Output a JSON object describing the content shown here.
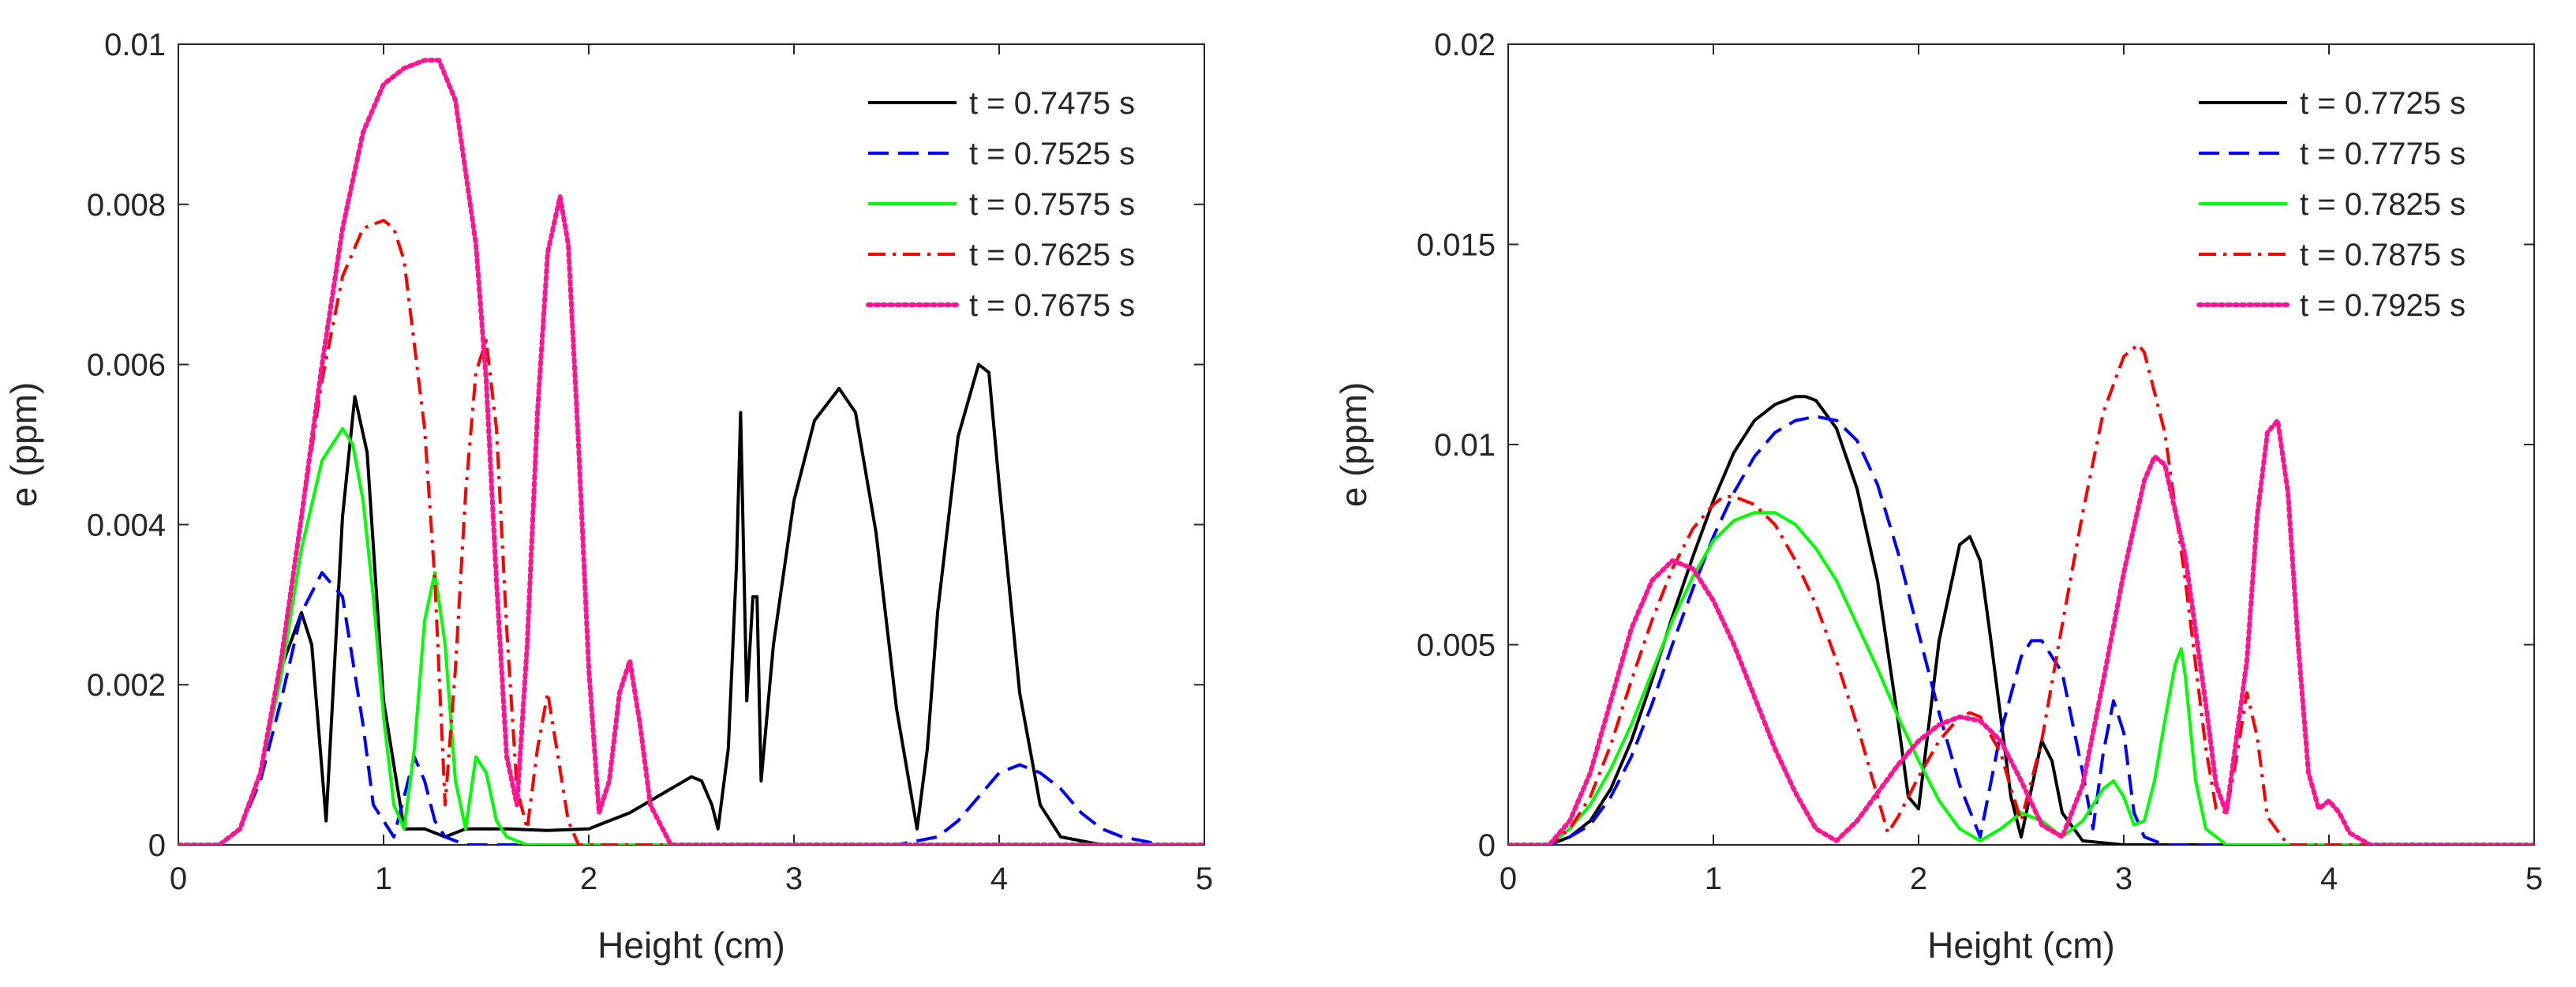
{
  "chart_data": [
    {
      "type": "line",
      "panel": "left",
      "title": "",
      "xlabel": "Height (cm)",
      "ylabel": "e (ppm)",
      "xlim": [
        0,
        5
      ],
      "ylim": [
        0,
        0.01
      ],
      "xticks": [
        0,
        1,
        2,
        3,
        4,
        5
      ],
      "xtick_labels": [
        "0",
        "1",
        "2",
        "3",
        "4",
        "5"
      ],
      "yticks": [
        0,
        0.002,
        0.004,
        0.006,
        0.008,
        0.01
      ],
      "ytick_labels": [
        "0",
        "0.002",
        "0.004",
        "0.006",
        "0.008",
        "0.01"
      ],
      "grid": false,
      "legend_position": "top-right",
      "series": [
        {
          "name": "t = 0.7475 s",
          "color": "#000000",
          "dash": "solid",
          "x": [
            0,
            0.2,
            0.3,
            0.4,
            0.5,
            0.6,
            0.65,
            0.72,
            0.8,
            0.86,
            0.92,
            1.0,
            1.1,
            1.2,
            1.3,
            1.4,
            1.6,
            1.8,
            2.0,
            2.2,
            2.4,
            2.5,
            2.55,
            2.6,
            2.63,
            2.68,
            2.72,
            2.74,
            2.77,
            2.8,
            2.82,
            2.84,
            2.9,
            3.0,
            3.1,
            3.22,
            3.3,
            3.4,
            3.5,
            3.6,
            3.65,
            3.7,
            3.8,
            3.9,
            3.95,
            4.0,
            4.1,
            4.2,
            4.3,
            4.5,
            4.7,
            5.0
          ],
          "y": [
            0,
            0,
            0.0002,
            0.0009,
            0.0022,
            0.0029,
            0.0025,
            0.0003,
            0.0041,
            0.0056,
            0.0049,
            0.0018,
            0.0002,
            0.0002,
            0.0001,
            0.0002,
            0.0002,
            0.00018,
            0.0002,
            0.0004,
            0.0007,
            0.00085,
            0.0008,
            0.0005,
            0.0002,
            0.0012,
            0.0035,
            0.0054,
            0.0018,
            0.0031,
            0.0031,
            0.0008,
            0.0025,
            0.0043,
            0.0053,
            0.0057,
            0.0054,
            0.0039,
            0.0017,
            0.0002,
            0.0012,
            0.0029,
            0.0051,
            0.006,
            0.0059,
            0.0045,
            0.0019,
            0.0005,
            0.0001,
            0,
            0,
            0
          ]
        },
        {
          "name": "t = 0.7525 s",
          "color": "#0000FF",
          "dash": "dashed",
          "x": [
            0,
            0.2,
            0.3,
            0.4,
            0.5,
            0.6,
            0.7,
            0.8,
            0.9,
            0.95,
            1.0,
            1.05,
            1.1,
            1.15,
            1.2,
            1.25,
            1.3,
            1.4,
            1.6,
            2.0,
            3.0,
            3.5,
            3.7,
            3.8,
            3.9,
            4.0,
            4.1,
            4.2,
            4.3,
            4.4,
            4.5,
            4.6,
            4.8,
            5.0
          ],
          "y": [
            0,
            0,
            0.0002,
            0.0008,
            0.0018,
            0.0029,
            0.0034,
            0.0031,
            0.0015,
            0.0005,
            0.0003,
            0.0001,
            0.0006,
            0.0011,
            0.0008,
            0.0003,
            0.0001,
            0,
            0,
            0,
            0,
            0,
            0.0001,
            0.0003,
            0.0006,
            0.0009,
            0.001,
            0.0009,
            0.0007,
            0.0004,
            0.0002,
            0.0001,
            0,
            0
          ]
        },
        {
          "name": "t = 0.7575 s",
          "color": "#00FF00",
          "dash": "solid",
          "x": [
            0,
            0.2,
            0.3,
            0.4,
            0.5,
            0.6,
            0.7,
            0.8,
            0.85,
            0.9,
            0.95,
            1.0,
            1.05,
            1.1,
            1.15,
            1.2,
            1.25,
            1.3,
            1.35,
            1.4,
            1.45,
            1.5,
            1.55,
            1.6,
            1.7,
            2.0,
            5.0
          ],
          "y": [
            0,
            0,
            0.0002,
            0.0009,
            0.0021,
            0.0037,
            0.0048,
            0.0052,
            0.005,
            0.0043,
            0.0031,
            0.0016,
            0.0005,
            0.0002,
            0.0012,
            0.0028,
            0.0034,
            0.0025,
            0.0008,
            0.0002,
            0.0011,
            0.0009,
            0.0003,
            0.0001,
            0,
            0,
            0
          ]
        },
        {
          "name": "t = 0.7625 s",
          "color": "#FF0000",
          "dash": "dashdot",
          "x": [
            0,
            0.2,
            0.3,
            0.4,
            0.5,
            0.6,
            0.7,
            0.8,
            0.9,
            1.0,
            1.05,
            1.1,
            1.2,
            1.25,
            1.3,
            1.35,
            1.4,
            1.45,
            1.5,
            1.55,
            1.6,
            1.65,
            1.7,
            1.75,
            1.8,
            1.85,
            1.9,
            1.95,
            2.0,
            3.0,
            5.0
          ],
          "y": [
            0,
            0,
            0.0002,
            0.0009,
            0.0023,
            0.0041,
            0.0058,
            0.0071,
            0.0077,
            0.0078,
            0.0077,
            0.0073,
            0.0052,
            0.0033,
            0.0005,
            0.0022,
            0.0044,
            0.0059,
            0.0063,
            0.0052,
            0.0027,
            0.0007,
            0.0002,
            0.0012,
            0.0019,
            0.0011,
            0.0003,
            0,
            0,
            0,
            0
          ]
        },
        {
          "name": "t = 0.7675 s",
          "color": "#FF1493",
          "dash": "dotted",
          "x": [
            0,
            0.2,
            0.3,
            0.4,
            0.5,
            0.6,
            0.7,
            0.8,
            0.9,
            1.0,
            1.1,
            1.2,
            1.27,
            1.35,
            1.45,
            1.5,
            1.55,
            1.6,
            1.65,
            1.7,
            1.75,
            1.8,
            1.86,
            1.9,
            1.95,
            2.0,
            2.05,
            2.1,
            2.15,
            2.2,
            2.25,
            2.3,
            2.4,
            3.0,
            5.0
          ],
          "y": [
            0,
            0,
            0.0002,
            0.0009,
            0.0023,
            0.0041,
            0.006,
            0.0077,
            0.0089,
            0.0095,
            0.0097,
            0.0098,
            0.0098,
            0.0093,
            0.0075,
            0.0058,
            0.0033,
            0.0011,
            0.0005,
            0.0025,
            0.0054,
            0.0074,
            0.0081,
            0.0075,
            0.005,
            0.0022,
            0.0004,
            0.0008,
            0.0019,
            0.0023,
            0.0015,
            0.0005,
            0,
            0,
            0
          ]
        }
      ]
    },
    {
      "type": "line",
      "panel": "right",
      "title": "",
      "xlabel": "Height (cm)",
      "ylabel": "e (ppm)",
      "xlim": [
        0,
        5
      ],
      "ylim": [
        0,
        0.02
      ],
      "xticks": [
        0,
        1,
        2,
        3,
        4,
        5
      ],
      "xtick_labels": [
        "0",
        "1",
        "2",
        "3",
        "4",
        "5"
      ],
      "yticks": [
        0,
        0.005,
        0.01,
        0.015,
        0.02
      ],
      "ytick_labels": [
        "0",
        "0.005",
        "0.01",
        "0.015",
        "0.02"
      ],
      "grid": false,
      "legend_position": "top-right",
      "series": [
        {
          "name": "t = 0.7725 s",
          "color": "#000000",
          "dash": "solid",
          "x": [
            0,
            0.2,
            0.3,
            0.4,
            0.5,
            0.6,
            0.7,
            0.8,
            0.9,
            1.0,
            1.1,
            1.2,
            1.3,
            1.4,
            1.45,
            1.5,
            1.6,
            1.7,
            1.8,
            1.9,
            1.95,
            2.0,
            2.1,
            2.2,
            2.25,
            2.3,
            2.35,
            2.4,
            2.45,
            2.5,
            2.55,
            2.6,
            2.65,
            2.7,
            2.8,
            3.0,
            5.0
          ],
          "y": [
            0,
            0,
            0.0002,
            0.0006,
            0.0014,
            0.0026,
            0.0041,
            0.0057,
            0.0072,
            0.0086,
            0.0098,
            0.0106,
            0.011,
            0.0112,
            0.0112,
            0.0111,
            0.0104,
            0.0089,
            0.0066,
            0.0031,
            0.0012,
            0.0009,
            0.0051,
            0.0075,
            0.0077,
            0.0071,
            0.0052,
            0.0032,
            0.0012,
            0.0002,
            0.0014,
            0.0026,
            0.0021,
            0.0008,
            0.0001,
            0,
            0
          ]
        },
        {
          "name": "t = 0.7775 s",
          "color": "#0000FF",
          "dash": "dashed",
          "x": [
            0,
            0.2,
            0.3,
            0.4,
            0.5,
            0.6,
            0.7,
            0.8,
            0.9,
            1.0,
            1.1,
            1.2,
            1.3,
            1.4,
            1.5,
            1.6,
            1.7,
            1.8,
            1.9,
            2.0,
            2.1,
            2.2,
            2.3,
            2.4,
            2.5,
            2.55,
            2.6,
            2.7,
            2.8,
            2.85,
            2.9,
            2.95,
            3.0,
            3.05,
            3.1,
            3.2,
            3.5,
            5.0
          ],
          "y": [
            0,
            0,
            0.0002,
            0.0005,
            0.0012,
            0.0022,
            0.0035,
            0.005,
            0.0064,
            0.0077,
            0.0088,
            0.0097,
            0.0103,
            0.0106,
            0.0107,
            0.0106,
            0.0101,
            0.009,
            0.0073,
            0.0053,
            0.0033,
            0.0015,
            0.0002,
            0.0028,
            0.0047,
            0.0051,
            0.0051,
            0.0043,
            0.0018,
            0.0004,
            0.0023,
            0.0036,
            0.0028,
            0.0008,
            0.0002,
            0,
            0,
            0
          ]
        },
        {
          "name": "t = 0.7825 s",
          "color": "#00FF00",
          "dash": "solid",
          "x": [
            0,
            0.2,
            0.3,
            0.4,
            0.5,
            0.6,
            0.7,
            0.8,
            0.9,
            1.0,
            1.1,
            1.2,
            1.3,
            1.4,
            1.5,
            1.6,
            1.7,
            1.8,
            1.9,
            2.0,
            2.1,
            2.2,
            2.3,
            2.4,
            2.5,
            2.6,
            2.7,
            2.8,
            2.9,
            2.95,
            3.0,
            3.05,
            3.1,
            3.15,
            3.2,
            3.25,
            3.28,
            3.3,
            3.35,
            3.4,
            3.5,
            5.0
          ],
          "y": [
            0,
            0,
            0.0004,
            0.001,
            0.0019,
            0.003,
            0.0043,
            0.0056,
            0.0067,
            0.0076,
            0.0081,
            0.0083,
            0.0083,
            0.008,
            0.0074,
            0.0066,
            0.0055,
            0.0044,
            0.0032,
            0.0021,
            0.0011,
            0.0004,
            0.0001,
            0.0004,
            0.0008,
            0.0006,
            0.0002,
            0.0006,
            0.0014,
            0.0016,
            0.0012,
            0.0005,
            0.0006,
            0.0016,
            0.0031,
            0.0045,
            0.0049,
            0.0042,
            0.0016,
            0.0004,
            0,
            0
          ]
        },
        {
          "name": "t = 0.7875 s",
          "color": "#FF0000",
          "dash": "dashdot",
          "x": [
            0,
            0.2,
            0.3,
            0.4,
            0.5,
            0.6,
            0.7,
            0.8,
            0.9,
            1.0,
            1.05,
            1.1,
            1.2,
            1.3,
            1.4,
            1.5,
            1.6,
            1.7,
            1.8,
            1.85,
            1.9,
            2.0,
            2.1,
            2.2,
            2.25,
            2.3,
            2.4,
            2.45,
            2.5,
            2.6,
            2.7,
            2.8,
            2.9,
            3.0,
            3.07,
            3.1,
            3.2,
            3.3,
            3.4,
            3.45,
            3.5,
            3.55,
            3.6,
            3.65,
            3.7,
            3.8,
            5.0
          ],
          "y": [
            0,
            0,
            0.0004,
            0.0012,
            0.0025,
            0.0041,
            0.0056,
            0.0069,
            0.0079,
            0.0085,
            0.0087,
            0.0087,
            0.0085,
            0.008,
            0.0071,
            0.006,
            0.0046,
            0.003,
            0.0012,
            0.0003,
            0.0007,
            0.0017,
            0.0026,
            0.0032,
            0.0033,
            0.0032,
            0.0023,
            0.0014,
            0.0006,
            0.0026,
            0.0055,
            0.0083,
            0.0108,
            0.0122,
            0.0125,
            0.0123,
            0.0103,
            0.0066,
            0.0024,
            0.0009,
            0.0008,
            0.0022,
            0.0038,
            0.0027,
            0.0007,
            0,
            0
          ]
        },
        {
          "name": "t = 0.7925 s",
          "color": "#FF1493",
          "dash": "dotted",
          "x": [
            0,
            0.2,
            0.3,
            0.4,
            0.5,
            0.6,
            0.7,
            0.8,
            0.9,
            1.0,
            1.1,
            1.2,
            1.3,
            1.4,
            1.5,
            1.6,
            1.7,
            1.8,
            1.9,
            2.0,
            2.1,
            2.2,
            2.3,
            2.4,
            2.5,
            2.6,
            2.7,
            2.8,
            2.9,
            3.0,
            3.1,
            3.15,
            3.2,
            3.3,
            3.4,
            3.45,
            3.5,
            3.6,
            3.65,
            3.7,
            3.75,
            3.8,
            3.85,
            3.9,
            3.95,
            4.0,
            4.05,
            4.1,
            4.2,
            5.0
          ],
          "y": [
            0,
            0,
            0.0006,
            0.0018,
            0.0036,
            0.0054,
            0.0066,
            0.0071,
            0.0069,
            0.0061,
            0.005,
            0.0037,
            0.0024,
            0.0013,
            0.0004,
            0.0001,
            0.0006,
            0.0013,
            0.002,
            0.0026,
            0.003,
            0.0032,
            0.0031,
            0.0026,
            0.0016,
            0.0005,
            0.0002,
            0.0015,
            0.0041,
            0.0068,
            0.0091,
            0.0097,
            0.0095,
            0.0072,
            0.0035,
            0.0015,
            0.0008,
            0.0046,
            0.0082,
            0.0103,
            0.0106,
            0.0088,
            0.005,
            0.0018,
            0.0009,
            0.0011,
            0.0008,
            0.0003,
            0,
            0
          ]
        }
      ]
    }
  ]
}
